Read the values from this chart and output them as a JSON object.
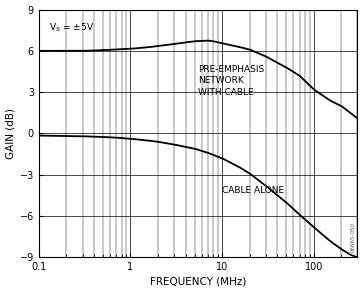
{
  "xlabel": "FREQUENCY (MHz)",
  "ylabel": "GAIN (dB)",
  "annotation_vs": "V$_S$ = ±5V",
  "annotation_pre": "PRE-EMPHASIS\nNETWORK\nWITH CABLE",
  "annotation_cable": "CABLE ALONE",
  "watermark": "06665-050",
  "xlim": [
    0.1,
    300
  ],
  "ylim": [
    -9,
    9
  ],
  "yticks": [
    -9,
    -6,
    -3,
    0,
    3,
    6,
    9
  ],
  "background_color": "#ffffff",
  "line_color": "#000000",
  "grid_color": "#000000",
  "label_fontsize": 7.5,
  "tick_fontsize": 7,
  "cable_key_f": [
    0.1,
    0.2,
    0.3,
    0.5,
    0.7,
    1.0,
    1.5,
    2.0,
    3.0,
    5.0,
    7.0,
    10.0,
    15.0,
    20.0,
    30.0,
    50.0,
    70.0,
    100.0,
    150.0,
    200.0,
    250.0,
    300.0
  ],
  "cable_key_v": [
    -0.15,
    -0.18,
    -0.2,
    -0.25,
    -0.3,
    -0.38,
    -0.5,
    -0.6,
    -0.8,
    -1.1,
    -1.4,
    -1.8,
    -2.4,
    -2.9,
    -3.8,
    -5.0,
    -5.9,
    -6.8,
    -7.8,
    -8.4,
    -8.8,
    -9.0
  ],
  "pre_key_f": [
    0.1,
    0.2,
    0.3,
    0.5,
    0.7,
    1.0,
    1.5,
    2.0,
    3.0,
    5.0,
    7.0,
    8.0,
    10.0,
    15.0,
    20.0,
    30.0,
    50.0,
    70.0,
    100.0,
    150.0,
    200.0,
    250.0,
    300.0
  ],
  "pre_key_v": [
    6.0,
    6.0,
    6.0,
    6.05,
    6.1,
    6.15,
    6.25,
    6.35,
    6.5,
    6.7,
    6.75,
    6.7,
    6.55,
    6.3,
    6.1,
    5.6,
    4.8,
    4.2,
    3.2,
    2.4,
    2.0,
    1.5,
    1.1
  ]
}
